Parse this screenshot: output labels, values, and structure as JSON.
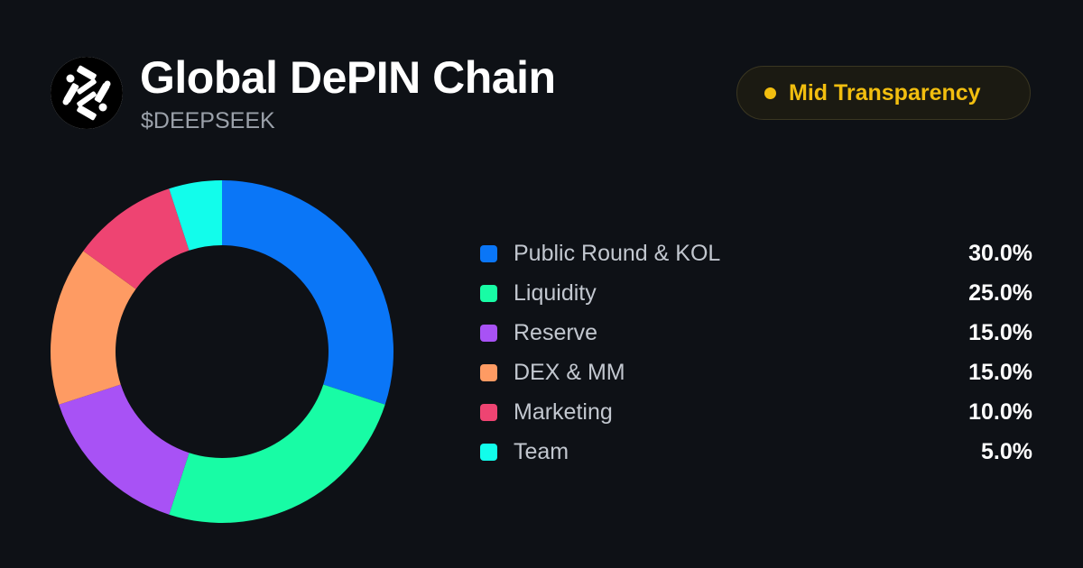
{
  "header": {
    "title": "Global DePIN Chain",
    "ticker": "$DEEPSEEK",
    "logo_icon": "deepseek-logo-icon"
  },
  "badge": {
    "label": "Mid Transparency",
    "color": "#f2be0f"
  },
  "colors": {
    "background": "#0e1116",
    "text_primary": "#ffffff",
    "text_secondary": "#9ba1aa",
    "badge_accent": "#f2be0f"
  },
  "chart_data": {
    "type": "pie",
    "donut": true,
    "legend_position": "right",
    "categories": [
      "Public Round & KOL",
      "Liquidity",
      "Reserve",
      "DEX & MM",
      "Marketing",
      "Team"
    ],
    "values": [
      30.0,
      25.0,
      15.0,
      15.0,
      10.0,
      5.0
    ],
    "labels": [
      "30.0%",
      "25.0%",
      "15.0%",
      "15.0%",
      "10.0%",
      "5.0%"
    ],
    "colors": [
      "#0a76f7",
      "#18fca5",
      "#a852f5",
      "#fe9b63",
      "#ee4472",
      "#12fdeb"
    ]
  }
}
